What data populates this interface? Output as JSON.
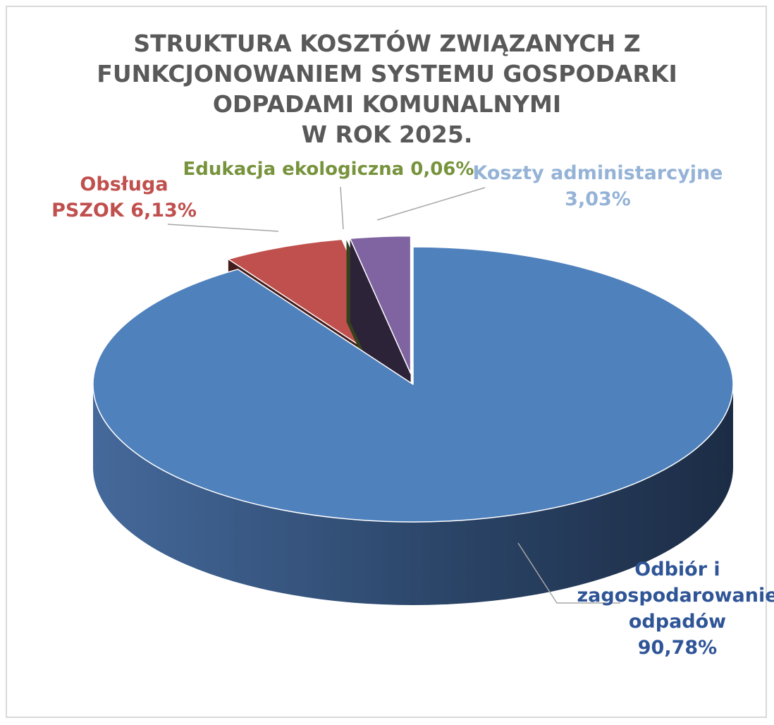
{
  "title_lines": [
    "STRUKTURA KOSZTÓW ZWIĄZANYCH Z",
    "FUNKCJONOWANIEM SYSTEMU GOSPODARKI",
    "ODPADAMI KOMUNALNYMI",
    "W ROK 2025."
  ],
  "chart_data": {
    "type": "pie",
    "title": "STRUKTURA KOSZTÓW ZWIĄZANYCH Z FUNKCJONOWANIEM SYSTEMU GOSPODARKI ODPADAMI KOMUNALNYMI W ROK 2025.",
    "unit": "%",
    "slices": [
      {
        "label": "Odbiór i zagospodarowanie odpadów",
        "value": 90.78,
        "display": "90,78%",
        "color": "#4f81bd",
        "label_color": "#2f5597",
        "label_lines": [
          "Odbiór i",
          "zagospodarowanie",
          "odpadów",
          "90,78%"
        ]
      },
      {
        "label": "Obsługa PSZOK",
        "value": 6.13,
        "display": "6,13%",
        "color": "#c0504d",
        "label_color": "#c0504d",
        "label_lines": [
          "Obsługa",
          "PSZOK 6,13%"
        ]
      },
      {
        "label": "Edukacja ekologiczna",
        "value": 0.06,
        "display": "0,06%",
        "color": "#9bbb59",
        "label_color": "#77933c",
        "label_lines": [
          "Edukacja ekologiczna 0,06%"
        ]
      },
      {
        "label": "Koszty administarcyjne",
        "value": 3.03,
        "display": "3,03%",
        "color": "#8064a2",
        "label_color": "#95b3d7",
        "label_lines": [
          "Koszty administarcyjne",
          "3,03%"
        ]
      }
    ]
  }
}
